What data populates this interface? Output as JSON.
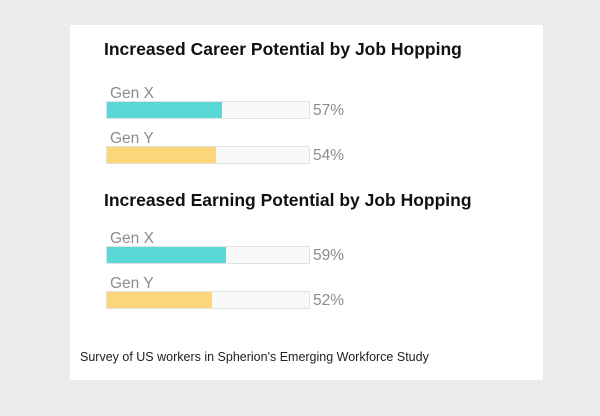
{
  "chart_data": [
    {
      "type": "bar",
      "title": "Increased Career Potential by Job Hopping",
      "categories": [
        "Gen X",
        "Gen Y"
      ],
      "values": [
        57,
        54
      ],
      "value_labels": [
        "57%",
        "54%"
      ],
      "colors": [
        "#5ad8d8",
        "#fdd679"
      ],
      "xlim": [
        0,
        100
      ]
    },
    {
      "type": "bar",
      "title": "Increased Earning Potential by Job Hopping",
      "categories": [
        "Gen X",
        "Gen Y"
      ],
      "values": [
        59,
        52
      ],
      "value_labels": [
        "59%",
        "52%"
      ],
      "colors": [
        "#5ad8d8",
        "#fdd679"
      ],
      "xlim": [
        0,
        100
      ]
    }
  ],
  "footnote": "Survey of US workers in Spherion's Emerging Workforce Study"
}
